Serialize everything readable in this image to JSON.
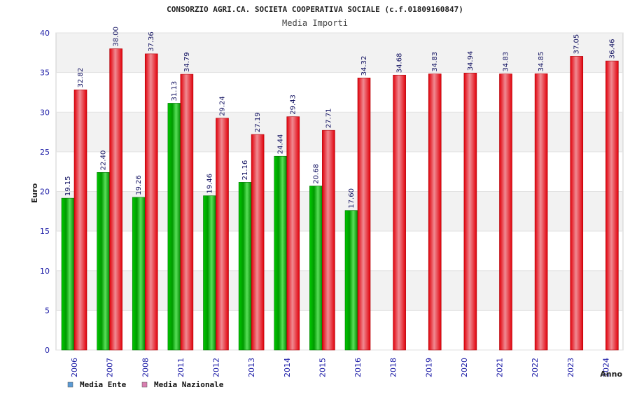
{
  "chart_data": {
    "type": "bar",
    "title": "CONSORZIO AGRI.CA. SOCIETA COOPERATIVA SOCIALE (c.f.01809160847)",
    "subtitle": "Media Importi",
    "xlabel": "Anno",
    "ylabel": "Euro",
    "ylim": [
      0,
      40
    ],
    "yticks": [
      "0",
      "5",
      "10",
      "15",
      "20",
      "25",
      "30",
      "35",
      "40"
    ],
    "grid": true,
    "legend_position": "bottom-left",
    "categories": [
      "2006",
      "2007",
      "2008",
      "2011",
      "2012",
      "2013",
      "2014",
      "2015",
      "2016",
      "2018",
      "2019",
      "2020",
      "2021",
      "2022",
      "2023",
      "2024"
    ],
    "series": [
      {
        "name": "Media Ente",
        "color": "#00a000",
        "legend_color": "#5b9bd5",
        "values": [
          19.15,
          22.4,
          19.26,
          31.13,
          19.46,
          21.16,
          24.44,
          20.68,
          17.6,
          null,
          null,
          null,
          null,
          null,
          null,
          null
        ],
        "labels": [
          "19.15",
          "22.40",
          "19.26",
          "31.13",
          "19.46",
          "21.16",
          "24.44",
          "20.68",
          "17.60",
          null,
          null,
          null,
          null,
          null,
          null,
          null
        ]
      },
      {
        "name": "Media Nazionale",
        "color": "#e8000f",
        "legend_color": "#d97fb0",
        "values": [
          32.82,
          38.0,
          37.36,
          34.79,
          29.24,
          27.19,
          29.43,
          27.71,
          34.32,
          34.68,
          34.83,
          34.94,
          34.83,
          34.85,
          37.05,
          36.46
        ],
        "labels": [
          "32.82",
          "38.00",
          "37.36",
          "34.79",
          "29.24",
          "27.19",
          "29.43",
          "27.71",
          "34.32",
          "34.68",
          "34.83",
          "34.94",
          "34.83",
          "34.85",
          "37.05",
          "36.46"
        ]
      }
    ]
  }
}
